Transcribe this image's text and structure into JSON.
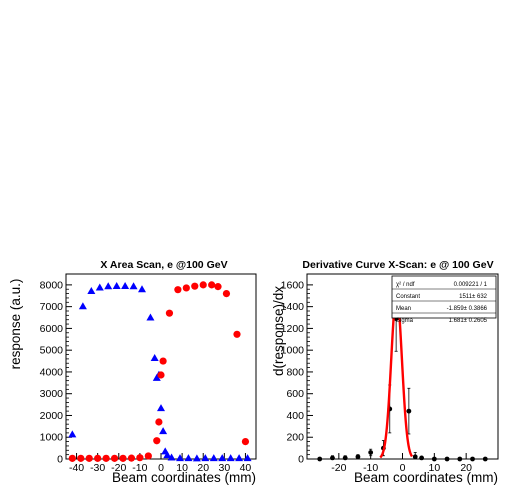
{
  "chart_data": [
    {
      "type": "scatter",
      "title": "X Area Scan, e @100 GeV",
      "xlabel": "Beam coordinates (mm)",
      "ylabel": "response (a.u.)",
      "xlim": [
        -45,
        45
      ],
      "ylim": [
        0,
        8500
      ],
      "x_ticks": [
        "-40",
        "-30",
        "-20",
        "-10",
        "0",
        "10",
        "20",
        "30",
        "40"
      ],
      "y_ticks": [
        "0",
        "1000",
        "2000",
        "3000",
        "4000",
        "5000",
        "6000",
        "7000",
        "8000"
      ],
      "grid": false,
      "series": [
        {
          "marker": "triangle",
          "color": "#0000ff",
          "points": [
            [
              -42,
              1130
            ],
            [
              -37,
              7020
            ],
            [
              -33,
              7720
            ],
            [
              -29,
              7880
            ],
            [
              -25,
              7940
            ],
            [
              -21,
              7950
            ],
            [
              -17,
              7950
            ],
            [
              -13,
              7940
            ],
            [
              -9,
              7800
            ],
            [
              -5,
              6500
            ],
            [
              -3,
              4640
            ],
            [
              -2,
              3730
            ],
            [
              -1,
              3870
            ],
            [
              0,
              2340
            ],
            [
              1,
              1280
            ],
            [
              2,
              350
            ],
            [
              3,
              180
            ],
            [
              5,
              70
            ],
            [
              9,
              40
            ],
            [
              13,
              40
            ],
            [
              17,
              30
            ],
            [
              21,
              40
            ],
            [
              25,
              40
            ],
            [
              29,
              40
            ],
            [
              33,
              40
            ],
            [
              37,
              40
            ],
            [
              41,
              40
            ]
          ]
        },
        {
          "marker": "circle",
          "color": "#ff0000",
          "points": [
            [
              -42,
              30
            ],
            [
              -38,
              30
            ],
            [
              -34,
              30
            ],
            [
              -30,
              30
            ],
            [
              -26,
              30
            ],
            [
              -22,
              30
            ],
            [
              -18,
              30
            ],
            [
              -14,
              40
            ],
            [
              -10,
              60
            ],
            [
              -6,
              140
            ],
            [
              -2,
              840
            ],
            [
              -1,
              1700
            ],
            [
              0,
              3860
            ],
            [
              1,
              4500
            ],
            [
              4,
              6700
            ],
            [
              8,
              7780
            ],
            [
              12,
              7860
            ],
            [
              16,
              7940
            ],
            [
              20,
              8000
            ],
            [
              24,
              8000
            ],
            [
              27,
              7920
            ],
            [
              31,
              7600
            ],
            [
              36,
              5730
            ],
            [
              40,
              800
            ]
          ]
        }
      ]
    },
    {
      "type": "scatter",
      "title": "Derivative Curve X-Scan: e @ 100 GeV",
      "xlabel": "Beam coordinates (mm)",
      "ylabel": "d(response)/dx",
      "xlim": [
        -30,
        30
      ],
      "ylim": [
        0,
        1700
      ],
      "x_ticks": [
        "-20",
        "-10",
        "0",
        "10",
        "20"
      ],
      "y_ticks": [
        "0",
        "200",
        "400",
        "600",
        "800",
        "1000",
        "1200",
        "1400",
        "1600"
      ],
      "grid": false,
      "series": [
        {
          "marker": "circle",
          "color": "#000000",
          "points": [
            [
              -26,
              0,
              10
            ],
            [
              -22,
              10,
              20
            ],
            [
              -18,
              10,
              20
            ],
            [
              -14,
              20,
              20
            ],
            [
              -10,
              60,
              30
            ],
            [
              -6,
              100,
              70
            ],
            [
              -4,
              460,
              220
            ],
            [
              -2,
              1290,
              300
            ],
            [
              2,
              440,
              210
            ],
            [
              4,
              20,
              40
            ],
            [
              6,
              10,
              10
            ],
            [
              10,
              0,
              10
            ],
            [
              14,
              0,
              10
            ],
            [
              18,
              0,
              10
            ],
            [
              22,
              0,
              10
            ],
            [
              26,
              0,
              10
            ]
          ]
        }
      ],
      "fit": {
        "function": "gaus",
        "color": "#ff0000",
        "constant": 1511,
        "mean": -1.859,
        "sigma": 1.681,
        "x_range": [
          -7,
          3
        ]
      },
      "stats_box": {
        "rows": [
          {
            "name": "χ² / ndf",
            "value": "0.009221 / 1"
          },
          {
            "name": "Constant",
            "value": "1511± 632"
          },
          {
            "name": "Mean",
            "value": "-1.859± 0.3866"
          },
          {
            "name": "Sigma",
            "value": "1.681± 0.2605"
          }
        ]
      }
    }
  ]
}
